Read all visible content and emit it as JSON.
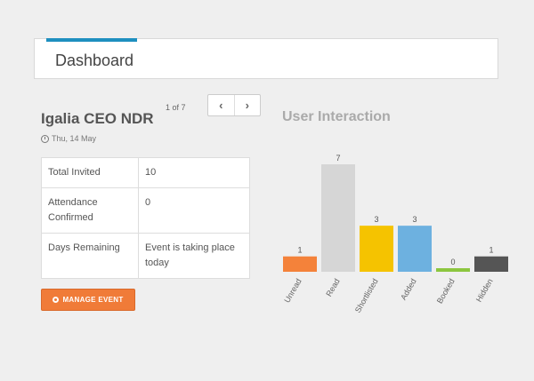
{
  "header": {
    "title": "Dashboard",
    "accent_color": "#1e8fbf"
  },
  "event": {
    "name": "Igalia CEO NDR",
    "date": "Thu, 14 May",
    "pager": {
      "text": "1 of 7",
      "prev_label": "‹",
      "next_label": "›"
    },
    "stats": [
      {
        "label": "Total Invited",
        "value": "10"
      },
      {
        "label": "Attendance Confirmed",
        "value": "0"
      },
      {
        "label": "Days Remaining",
        "value": "Event is taking place today"
      }
    ],
    "manage_button": {
      "label": "MANAGE EVENT",
      "icon": "gear-icon",
      "color": "#f07b38"
    }
  },
  "chart_data": {
    "type": "bar",
    "title": "User Interaction",
    "categories": [
      "Unread",
      "Read",
      "Shortlisted",
      "Added",
      "Booked",
      "Hidden"
    ],
    "values": [
      1,
      7,
      3,
      3,
      0,
      1
    ],
    "colors": [
      "#f4823a",
      "#d6d6d6",
      "#f5c300",
      "#6db1e0",
      "#8cc63f",
      "#555555"
    ],
    "ylim": [
      0,
      7
    ],
    "grid": false,
    "legend": "none"
  }
}
